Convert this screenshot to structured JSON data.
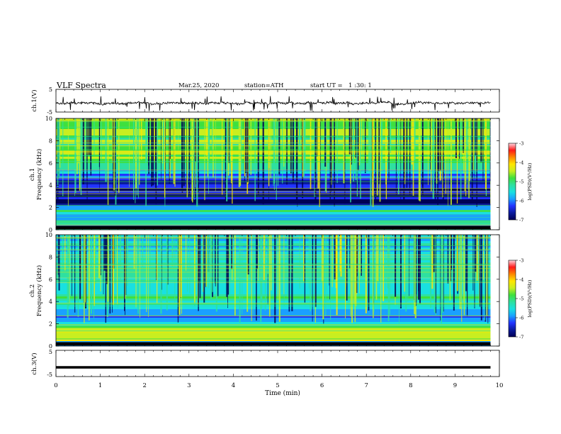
{
  "header": {
    "title": "VLF Spectra",
    "date": "Mar.25, 2020",
    "station": "station=ATH",
    "start": "start UT =",
    "start_time": "1 :30: 1"
  },
  "colors": {
    "colormap": [
      "#000055",
      "#0a1a9c",
      "#2233ff",
      "#1aa0ff",
      "#19e0e0",
      "#2ee0a0",
      "#3ee03e",
      "#c8ee20",
      "#ffe600",
      "#ff8800",
      "#ff1a1a",
      "#ffd6e0"
    ]
  },
  "chart_data": [
    {
      "id": "ch1-waveform",
      "type": "line",
      "ylabel": "ch.1(V)",
      "ylim": [
        -5,
        5
      ],
      "yticks": [
        "5",
        "-5"
      ],
      "xlim": [
        0,
        10
      ],
      "description_values": {
        "mean_level": -1.2,
        "noise_amplitude": 0.8,
        "spike_min": -4.6,
        "spike_max": 2.2,
        "data_end_min": 9.8
      }
    },
    {
      "id": "ch1-spectrogram",
      "type": "heatmap",
      "ylabel": "ch.1\nFrequency (kHz)",
      "ylabel_top": "ch.1",
      "ylabel_bottom": "Frequency (kHz)",
      "ylim": [
        0,
        10
      ],
      "yticks": [
        "0",
        "2",
        "4",
        "6",
        "8",
        "10"
      ],
      "xlim": [
        0,
        10
      ],
      "data_end_min": 9.8,
      "colorbar": {
        "label": "log(PSD)(V²/Hz)",
        "range": [
          -7,
          -3
        ],
        "ticks": [
          "-3",
          "-4",
          "-5",
          "-6",
          "-7"
        ]
      },
      "profile_kHz_level": [
        [
          0.2,
          0.0
        ],
        [
          0.5,
          0.6
        ],
        [
          1.0,
          0.25
        ],
        [
          1.7,
          0.55
        ],
        [
          2.3,
          0.15
        ],
        [
          3.0,
          0.1
        ],
        [
          3.5,
          0.12
        ],
        [
          4.5,
          0.2
        ],
        [
          5.5,
          0.45
        ],
        [
          6.5,
          0.62
        ],
        [
          7.5,
          0.6
        ],
        [
          8.5,
          0.58
        ],
        [
          9.5,
          0.6
        ],
        [
          10,
          0.55
        ]
      ]
    },
    {
      "id": "ch2-spectrogram",
      "type": "heatmap",
      "ylabel": "ch.2\nFrequency (kHz)",
      "ylabel_top": "ch.2",
      "ylabel_bottom": "Frequency (kHz)",
      "ylim": [
        0,
        10
      ],
      "yticks": [
        "0",
        "2",
        "4",
        "6",
        "8",
        "10"
      ],
      "xlim": [
        0,
        10
      ],
      "data_end_min": 9.8,
      "colorbar": {
        "label": "log(PSD)(V²/Hz)",
        "range": [
          -7,
          -3
        ],
        "ticks": [
          "-3",
          "-4",
          "-5",
          "-6",
          "-7"
        ]
      },
      "profile_kHz_level": [
        [
          0.2,
          0.0
        ],
        [
          0.5,
          0.75
        ],
        [
          1.0,
          0.7
        ],
        [
          1.7,
          0.55
        ],
        [
          2.5,
          0.25
        ],
        [
          3.5,
          0.45
        ],
        [
          4.5,
          0.5
        ],
        [
          5.5,
          0.45
        ],
        [
          6.5,
          0.5
        ],
        [
          7.5,
          0.45
        ],
        [
          8.5,
          0.4
        ],
        [
          9.5,
          0.38
        ],
        [
          10,
          0.35
        ]
      ]
    },
    {
      "id": "ch3-waveform",
      "type": "line",
      "ylabel": "ch.3(V)",
      "ylim": [
        -5,
        5
      ],
      "yticks": [
        "5",
        "-5"
      ],
      "xlim": [
        0,
        10
      ],
      "xlabel": "Time (min)",
      "xticks": [
        "0",
        "1",
        "2",
        "3",
        "4",
        "5",
        "6",
        "7",
        "8",
        "9",
        "10"
      ],
      "constant_value": -1.5,
      "data_end_min": 9.8
    }
  ]
}
